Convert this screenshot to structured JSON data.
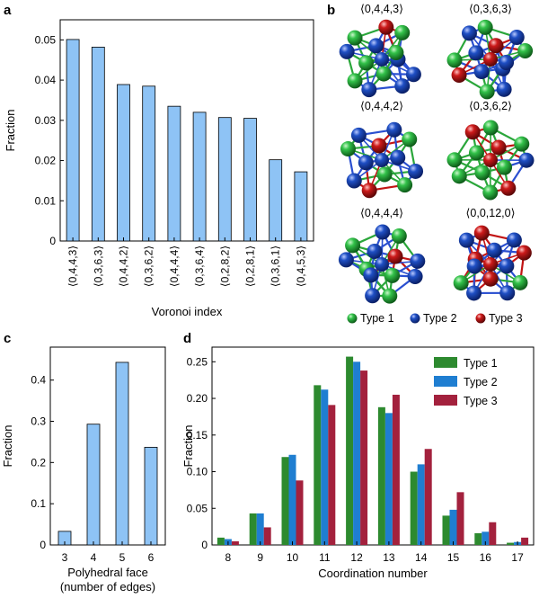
{
  "panel_labels": {
    "a": "a",
    "b": "b",
    "c": "c",
    "d": "d"
  },
  "colors": {
    "bar_blue": "#8ec3f5",
    "type1": "#2d8a2f",
    "type2": "#1f7ed1",
    "type3": "#a3213d",
    "atom_green": "#33c24a",
    "atom_blue": "#1f4fc4",
    "atom_red": "#cc1a1a"
  },
  "chart_data": [
    {
      "id": "a",
      "type": "bar",
      "ylabel": "Fraction",
      "xlabel": "Voronoi index",
      "ylim": [
        0,
        0.055
      ],
      "yticks": [
        "0",
        "0.01",
        "0.02",
        "0.03",
        "0.04",
        "0.05"
      ],
      "categories": [
        "⟨0,4,4,3⟩",
        "⟨0,3,6,3⟩",
        "⟨0,4,4,2⟩",
        "⟨0,3,6,2⟩",
        "⟨0,4,4,4⟩",
        "⟨0,3,6,4⟩",
        "⟨0,2,8,2⟩",
        "⟨0,2,8,1⟩",
        "⟨0,3,6,1⟩",
        "⟨0,4,5,3⟩"
      ],
      "values": [
        0.0501,
        0.0482,
        0.0389,
        0.0385,
        0.0335,
        0.032,
        0.0307,
        0.0305,
        0.0202,
        0.0172
      ]
    },
    {
      "id": "c",
      "type": "bar",
      "ylabel": "Fraction",
      "xlabel_lines": [
        "Polyhedral face",
        "(number of edges)"
      ],
      "ylim": [
        0,
        0.48
      ],
      "yticks": [
        "0",
        "0.1",
        "0.2",
        "0.3",
        "0.4"
      ],
      "categories": [
        "3",
        "4",
        "5",
        "6"
      ],
      "values": [
        0.033,
        0.293,
        0.443,
        0.237
      ]
    },
    {
      "id": "d",
      "type": "bar",
      "ylabel": "Fraction",
      "xlabel": "Coordination number",
      "ylim": [
        0,
        0.27
      ],
      "yticks": [
        "0",
        "0.05",
        "0.10",
        "0.15",
        "0.20",
        "0.25"
      ],
      "categories": [
        "8",
        "9",
        "10",
        "11",
        "12",
        "13",
        "14",
        "15",
        "16",
        "17"
      ],
      "legend": "top-right",
      "series": [
        {
          "name": "Type 1",
          "values": [
            0.01,
            0.043,
            0.12,
            0.218,
            0.257,
            0.188,
            0.1,
            0.04,
            0.016,
            0.003
          ]
        },
        {
          "name": "Type 2",
          "values": [
            0.008,
            0.043,
            0.123,
            0.212,
            0.25,
            0.18,
            0.11,
            0.048,
            0.018,
            0.004
          ]
        },
        {
          "name": "Type 3",
          "values": [
            0.005,
            0.024,
            0.088,
            0.191,
            0.238,
            0.205,
            0.131,
            0.072,
            0.031,
            0.01
          ]
        }
      ]
    }
  ],
  "cluster_panel": {
    "labels": [
      "⟨0,4,4,3⟩",
      "⟨0,3,6,3⟩",
      "⟨0,4,4,2⟩",
      "⟨0,3,6,2⟩",
      "⟨0,4,4,4⟩",
      "⟨0,0,12,0⟩"
    ],
    "legend": [
      "Type 1",
      "Type 2",
      "Type 3"
    ]
  }
}
